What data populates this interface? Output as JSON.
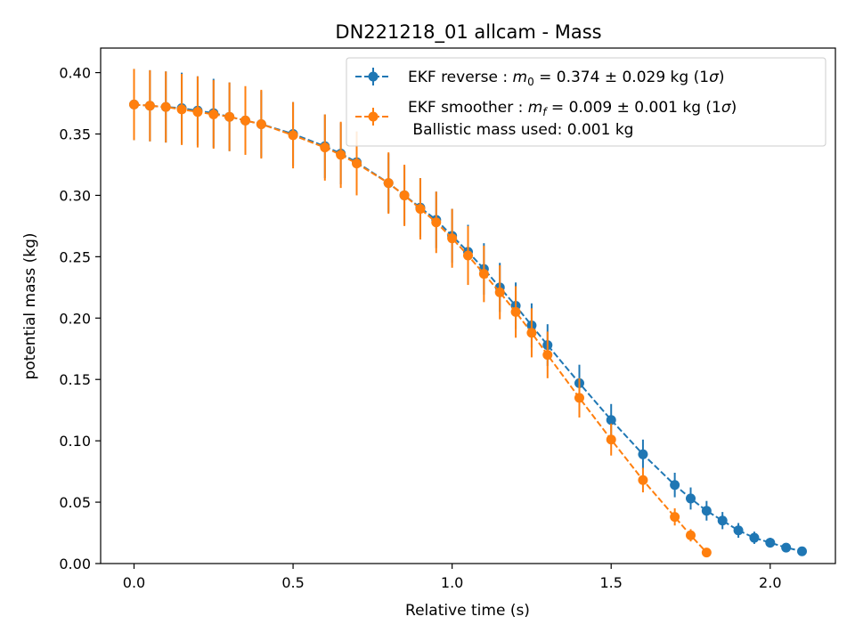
{
  "chart_data": {
    "type": "line",
    "title": "DN221218_01 allcam - Mass",
    "xlabel": "Relative time (s)",
    "ylabel": "potential mass (kg)",
    "xlim": [
      -0.105,
      2.205
    ],
    "ylim": [
      0.0,
      0.42
    ],
    "xticks": [
      0.0,
      0.5,
      1.0,
      1.5,
      2.0
    ],
    "xtick_labels": [
      "0.0",
      "0.5",
      "1.0",
      "1.5",
      "2.0"
    ],
    "yticks": [
      0.0,
      0.05,
      0.1,
      0.15,
      0.2,
      0.25,
      0.3,
      0.35,
      0.4
    ],
    "ytick_labels": [
      "0.00",
      "0.05",
      "0.10",
      "0.15",
      "0.20",
      "0.25",
      "0.30",
      "0.35",
      "0.40"
    ],
    "grid": false,
    "legend_position": "top-right",
    "series": [
      {
        "name": "EKF reverse",
        "legend_prefix": "EKF reverse : ",
        "legend_var": "m",
        "legend_sub": "0",
        "legend_value": " =  0.374 ± 0.029 kg (1",
        "legend_sigma": "σ",
        "legend_close": ")",
        "color": "#1f77b4",
        "x": [
          0.0,
          0.05,
          0.1,
          0.15,
          0.2,
          0.25,
          0.3,
          0.35,
          0.4,
          0.5,
          0.6,
          0.65,
          0.7,
          0.8,
          0.85,
          0.9,
          0.95,
          1.0,
          1.05,
          1.1,
          1.15,
          1.2,
          1.25,
          1.3,
          1.4,
          1.5,
          1.6,
          1.7,
          1.75,
          1.8,
          1.85,
          1.9,
          1.95,
          2.0,
          2.05,
          2.1
        ],
        "y": [
          0.374,
          0.373,
          0.372,
          0.371,
          0.369,
          0.367,
          0.364,
          0.361,
          0.358,
          0.35,
          0.34,
          0.334,
          0.327,
          0.31,
          0.3,
          0.29,
          0.28,
          0.267,
          0.254,
          0.24,
          0.225,
          0.21,
          0.194,
          0.178,
          0.147,
          0.117,
          0.089,
          0.064,
          0.053,
          0.043,
          0.035,
          0.027,
          0.021,
          0.017,
          0.013,
          0.01
        ],
        "err": [
          0.029,
          0.029,
          0.029,
          0.029,
          0.028,
          0.028,
          0.028,
          0.027,
          0.027,
          0.026,
          0.026,
          0.025,
          0.025,
          0.024,
          0.024,
          0.024,
          0.023,
          0.022,
          0.022,
          0.021,
          0.02,
          0.019,
          0.018,
          0.017,
          0.015,
          0.013,
          0.012,
          0.01,
          0.009,
          0.008,
          0.007,
          0.006,
          0.005,
          0.004,
          0.003,
          0.003
        ]
      },
      {
        "name": "EKF smoother",
        "legend_prefix": "EKF smoother : ",
        "legend_var": "m",
        "legend_sub": "f",
        "legend_value": " =  0.009 ± 0.001 kg (1",
        "legend_sigma": "σ",
        "legend_close": ")",
        "legend_line2": " Ballistic mass used: 0.001 kg",
        "color": "#ff7f0e",
        "x": [
          0.0,
          0.05,
          0.1,
          0.15,
          0.2,
          0.25,
          0.3,
          0.35,
          0.4,
          0.5,
          0.6,
          0.65,
          0.7,
          0.8,
          0.85,
          0.9,
          0.95,
          1.0,
          1.05,
          1.1,
          1.15,
          1.2,
          1.25,
          1.3,
          1.4,
          1.5,
          1.6,
          1.7,
          1.75,
          1.8
        ],
        "y": [
          0.374,
          0.373,
          0.372,
          0.37,
          0.368,
          0.366,
          0.364,
          0.361,
          0.358,
          0.349,
          0.339,
          0.333,
          0.326,
          0.31,
          0.3,
          0.289,
          0.278,
          0.265,
          0.251,
          0.236,
          0.221,
          0.205,
          0.188,
          0.17,
          0.135,
          0.101,
          0.068,
          0.038,
          0.023,
          0.009
        ],
        "err": [
          0.029,
          0.029,
          0.029,
          0.029,
          0.029,
          0.028,
          0.028,
          0.028,
          0.028,
          0.027,
          0.027,
          0.027,
          0.026,
          0.025,
          0.025,
          0.025,
          0.025,
          0.024,
          0.024,
          0.023,
          0.022,
          0.021,
          0.02,
          0.019,
          0.016,
          0.013,
          0.01,
          0.007,
          0.005,
          0.002
        ]
      }
    ]
  }
}
